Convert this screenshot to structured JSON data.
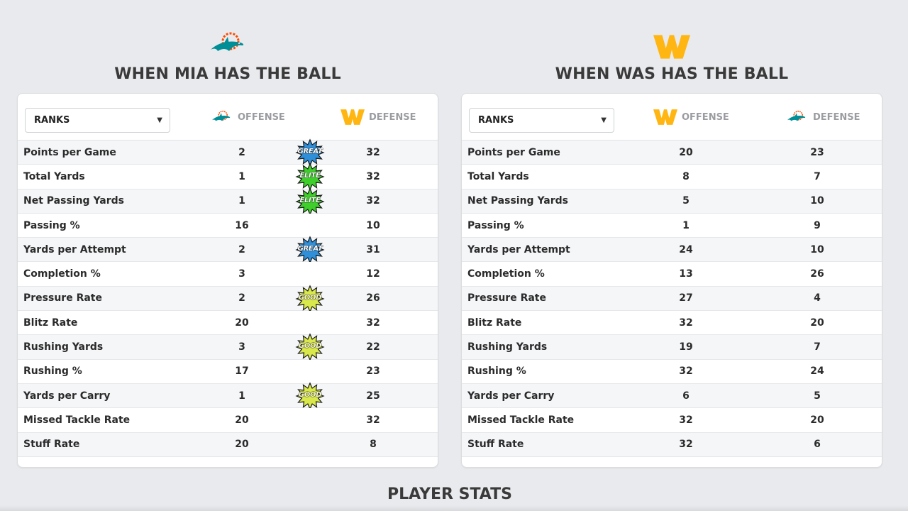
{
  "left": {
    "title": "WHEN MIA HAS THE BALL",
    "select_value": "RANKS",
    "offense_label": "OFFENSE",
    "defense_label": "DEFENSE",
    "offense_logo": "dolphins-logo",
    "defense_logo": "commanders-w-logo",
    "rows": [
      {
        "label": "Points per Game",
        "off": "2",
        "def": "32",
        "badge": "GREAT"
      },
      {
        "label": "Total Yards",
        "off": "1",
        "def": "32",
        "badge": "ELITE"
      },
      {
        "label": "Net Passing Yards",
        "off": "1",
        "def": "32",
        "badge": "ELITE"
      },
      {
        "label": "Passing %",
        "off": "16",
        "def": "10",
        "badge": ""
      },
      {
        "label": "Yards per Attempt",
        "off": "2",
        "def": "31",
        "badge": "GREAT"
      },
      {
        "label": "Completion %",
        "off": "3",
        "def": "12",
        "badge": ""
      },
      {
        "label": "Pressure Rate",
        "off": "2",
        "def": "26",
        "badge": "GOOD"
      },
      {
        "label": "Blitz Rate",
        "off": "20",
        "def": "32",
        "badge": ""
      },
      {
        "label": "Rushing Yards",
        "off": "3",
        "def": "22",
        "badge": "GOOD"
      },
      {
        "label": "Rushing %",
        "off": "17",
        "def": "23",
        "badge": ""
      },
      {
        "label": "Yards per Carry",
        "off": "1",
        "def": "25",
        "badge": "GOOD"
      },
      {
        "label": "Missed Tackle Rate",
        "off": "20",
        "def": "32",
        "badge": ""
      },
      {
        "label": "Stuff Rate",
        "off": "20",
        "def": "8",
        "badge": ""
      }
    ]
  },
  "right": {
    "title": "WHEN WAS HAS THE BALL",
    "select_value": "RANKS",
    "offense_label": "OFFENSE",
    "defense_label": "DEFENSE",
    "offense_logo": "commanders-w-logo",
    "defense_logo": "dolphins-logo",
    "rows": [
      {
        "label": "Points per Game",
        "off": "20",
        "def": "23",
        "badge": ""
      },
      {
        "label": "Total Yards",
        "off": "8",
        "def": "7",
        "badge": ""
      },
      {
        "label": "Net Passing Yards",
        "off": "5",
        "def": "10",
        "badge": ""
      },
      {
        "label": "Passing %",
        "off": "1",
        "def": "9",
        "badge": ""
      },
      {
        "label": "Yards per Attempt",
        "off": "24",
        "def": "10",
        "badge": ""
      },
      {
        "label": "Completion %",
        "off": "13",
        "def": "26",
        "badge": ""
      },
      {
        "label": "Pressure Rate",
        "off": "27",
        "def": "4",
        "badge": ""
      },
      {
        "label": "Blitz Rate",
        "off": "32",
        "def": "20",
        "badge": ""
      },
      {
        "label": "Rushing Yards",
        "off": "19",
        "def": "7",
        "badge": ""
      },
      {
        "label": "Rushing %",
        "off": "32",
        "def": "24",
        "badge": ""
      },
      {
        "label": "Yards per Carry",
        "off": "6",
        "def": "5",
        "badge": ""
      },
      {
        "label": "Missed Tackle Rate",
        "off": "32",
        "def": "20",
        "badge": ""
      },
      {
        "label": "Stuff Rate",
        "off": "32",
        "def": "6",
        "badge": ""
      }
    ]
  },
  "footer_title": "PLAYER STATS",
  "colors": {
    "dolphins_aqua": "#008e97",
    "dolphins_orange": "#fc4c02",
    "commanders_gold": "#ffb612",
    "badge_great": "#2f8fd8",
    "badge_elite": "#3fcf2a",
    "badge_good": "#d9e84a"
  }
}
